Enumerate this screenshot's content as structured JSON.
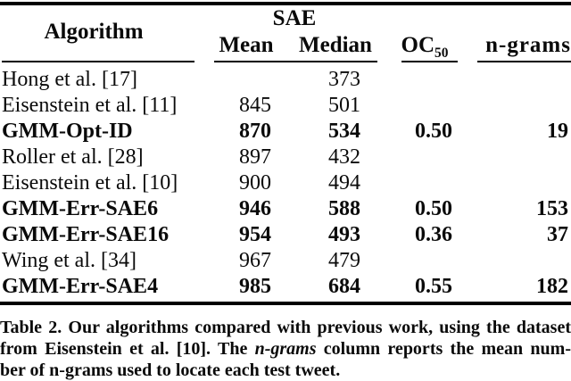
{
  "table": {
    "header": {
      "algorithm": "Algorithm",
      "sae_group": "SAE",
      "mean": "Mean",
      "median": "Median",
      "oc_base": "OC",
      "oc_sub": "50",
      "ngrams": "n-grams"
    },
    "rows": [
      {
        "algorithm": "Hong et al. [17]",
        "mean": "",
        "median": "373",
        "oc50": "",
        "ngrams": "",
        "bold": false
      },
      {
        "algorithm": "Eisenstein et al. [11]",
        "mean": "845",
        "median": "501",
        "oc50": "",
        "ngrams": "",
        "bold": false
      },
      {
        "algorithm": "GMM-Opt-ID",
        "mean": "870",
        "median": "534",
        "oc50": "0.50",
        "ngrams": "19",
        "bold": true
      },
      {
        "algorithm": "Roller et al. [28]",
        "mean": "897",
        "median": "432",
        "oc50": "",
        "ngrams": "",
        "bold": false
      },
      {
        "algorithm": "Eisenstein et al. [10]",
        "mean": "900",
        "median": "494",
        "oc50": "",
        "ngrams": "",
        "bold": false
      },
      {
        "algorithm": "GMM-Err-SAE6",
        "mean": "946",
        "median": "588",
        "oc50": "0.50",
        "ngrams": "153",
        "bold": true
      },
      {
        "algorithm": "GMM-Err-SAE16",
        "mean": "954",
        "median": "493",
        "oc50": "0.36",
        "ngrams": "37",
        "bold": true
      },
      {
        "algorithm": "Wing et al. [34]",
        "mean": "967",
        "median": "479",
        "oc50": "",
        "ngrams": "",
        "bold": false
      },
      {
        "algorithm": "GMM-Err-SAE4",
        "mean": "985",
        "median": "684",
        "oc50": "0.55",
        "ngrams": "182",
        "bold": true
      }
    ]
  },
  "caption": {
    "lines": [
      {
        "text": "Table 2. Our algorithms compared with previous work, using the dataset"
      },
      {
        "pre": "from Eisenstein et al. [10]. The ",
        "italic": "n-grams",
        "post": " column reports the mean num-"
      },
      {
        "text": "ber of n-grams used to locate each test tweet."
      }
    ]
  },
  "colors": {
    "background": "#ffffff",
    "text": "#0a0a0a",
    "rule": "#000000"
  }
}
